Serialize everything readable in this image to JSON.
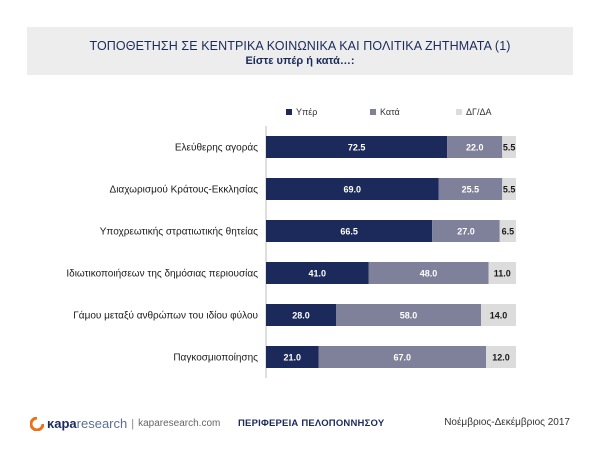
{
  "header": {
    "title": "ΤΟΠΟΘΕΤΗΣΗ ΣΕ ΚΕΝΤΡΙΚΑ ΚΟΙΝΩΝΙΚΑ ΚΑΙ ΠΟΛΙΤΙΚΑ ΖΗΤΗΜΑΤΑ (1)",
    "subtitle": "Είστε υπέρ ή κατά…:"
  },
  "chart_data": {
    "type": "bar",
    "orientation": "horizontal",
    "stacked": true,
    "categories": [
      "Ελεύθερης αγοράς",
      "Διαχωρισμού Κράτους-Εκκλησίας",
      "Υποχρεωτικής στρατιωτικής θητείας",
      "Ιδιωτικοποιήσεων της δημόσιας περιουσίας",
      "Γάμου μεταξύ ανθρώπων του ιδίου φύλου",
      "Παγκοσμιοποίησης"
    ],
    "series": [
      {
        "name": "Υπέρ",
        "color": "#1b2a5a",
        "values": [
          72.5,
          69.0,
          66.5,
          41.0,
          28.0,
          21.0
        ]
      },
      {
        "name": "Κατά",
        "color": "#7f819a",
        "values": [
          22.0,
          25.5,
          27.0,
          48.0,
          58.0,
          67.0
        ]
      },
      {
        "name": "ΔΓ/ΔΑ",
        "color": "#dcdcdc",
        "values": [
          5.5,
          5.5,
          6.5,
          11.0,
          14.0,
          12.0
        ]
      }
    ],
    "xlim": [
      0,
      100
    ],
    "legend_position": "top",
    "grid": false
  },
  "footer": {
    "brand_bold": "κapa",
    "brand_light": "research",
    "separator": "|",
    "url": "kaparesearch.com",
    "region": "ΠΕΡΙΦΕΡΕΙΑ ΠΕΛΟΠΟΝΝΗΣΟΥ",
    "date": "Νοέμβριος-Δεκέμβριος 2017",
    "accent_color": "#e8731a"
  }
}
